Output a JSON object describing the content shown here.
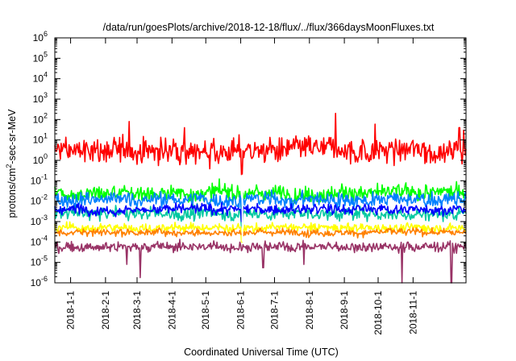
{
  "chart_data": {
    "type": "line",
    "title": "/data/run/goesPlots/archive/2018-12-18/flux/../flux/366daysMoonFluxes.txt",
    "xlabel": "Coordinated Universal Time (UTC)",
    "ylabel_base": "protons/cm",
    "ylabel_sup": "2",
    "ylabel_rest": "-sec-sr-MeV",
    "x_range": [
      "2017-12-18",
      "2018-12-18"
    ],
    "x_ticks": [
      "2018-1-1",
      "2018-2-1",
      "2018-3-1",
      "2018-4-1",
      "2018-5-1",
      "2018-6-1",
      "2018-7-1",
      "2018-8-1",
      "2018-9-1",
      "2018-10-1",
      "2018-11-1"
    ],
    "y_scale": "log",
    "y_range": [
      1e-06,
      1000000.0
    ],
    "y_ticks": [
      {
        "base": "10",
        "exp": "-6",
        "value": 1e-06
      },
      {
        "base": "10",
        "exp": "-5",
        "value": 1e-05
      },
      {
        "base": "10",
        "exp": "-4",
        "value": 0.0001
      },
      {
        "base": "10",
        "exp": "-3",
        "value": 0.001
      },
      {
        "base": "10",
        "exp": "-2",
        "value": 0.01
      },
      {
        "base": "10",
        "exp": "-1",
        "value": 0.1
      },
      {
        "base": "10",
        "exp": "0",
        "value": 1
      },
      {
        "base": "10",
        "exp": "1",
        "value": 10
      },
      {
        "base": "10",
        "exp": "2",
        "value": 100
      },
      {
        "base": "10",
        "exp": "3",
        "value": 1000
      },
      {
        "base": "10",
        "exp": "4",
        "value": 10000
      },
      {
        "base": "10",
        "exp": "5",
        "value": 100000
      },
      {
        "base": "10",
        "exp": "6",
        "value": 1000000
      }
    ],
    "grid": false,
    "legend": "none",
    "series": [
      {
        "color": "#ff0000",
        "median": 3.0,
        "spread_dex": 0.85,
        "spikes": [
          {
            "x": "2018-2-22",
            "y": 80
          },
          {
            "x": "2018-8-24",
            "y": 200
          },
          {
            "x": "2018-9-28",
            "y": 60
          },
          {
            "x": "2018-12-12",
            "y": 40
          },
          {
            "x": "2018-4-12",
            "y": 40
          },
          {
            "x": "2018-12-16",
            "y": 30
          }
        ],
        "dips": [
          {
            "x": "2018-6-2",
            "y": 0.2
          }
        ]
      },
      {
        "color": "#00ff00",
        "median": 0.025,
        "spread_dex": 0.55,
        "spikes": [],
        "dips": [
          {
            "x": "2018-6-2",
            "y": 0.003
          }
        ]
      },
      {
        "color": "#0080ff",
        "median": 0.012,
        "spread_dex": 0.5,
        "spikes": [],
        "dips": [
          {
            "x": "2018-6-2",
            "y": 0.002
          }
        ]
      },
      {
        "color": "#00c8a0",
        "median": 0.0025,
        "spread_dex": 0.45,
        "spikes": [],
        "dips": [
          {
            "x": "2018-6-2",
            "y": 0.0005
          }
        ]
      },
      {
        "color": "#0000ff",
        "median": 0.004,
        "spread_dex": 0.35,
        "spikes": [],
        "dips": [
          {
            "x": "2018-6-2",
            "y": 0.001
          }
        ]
      },
      {
        "color": "#ffff00",
        "median": 0.0005,
        "spread_dex": 0.3,
        "spikes": [],
        "dips": [
          {
            "x": "2018-6-2",
            "y": 0.0001
          }
        ]
      },
      {
        "color": "#ff8000",
        "median": 0.0003,
        "spread_dex": 0.25,
        "spikes": [],
        "dips": []
      },
      {
        "color": "#993366",
        "median": 6e-05,
        "spread_dex": 0.35,
        "spikes": [],
        "dips": [
          {
            "x": "2018-2-20",
            "y": 8e-06
          },
          {
            "x": "2018-3-4",
            "y": 1.8e-06
          },
          {
            "x": "2018-6-21",
            "y": 5.5e-06
          },
          {
            "x": "2018-7-27",
            "y": 8e-06
          },
          {
            "x": "2018-10-22",
            "y": 1e-06
          },
          {
            "x": "2018-12-5",
            "y": 1e-06
          }
        ]
      }
    ]
  }
}
